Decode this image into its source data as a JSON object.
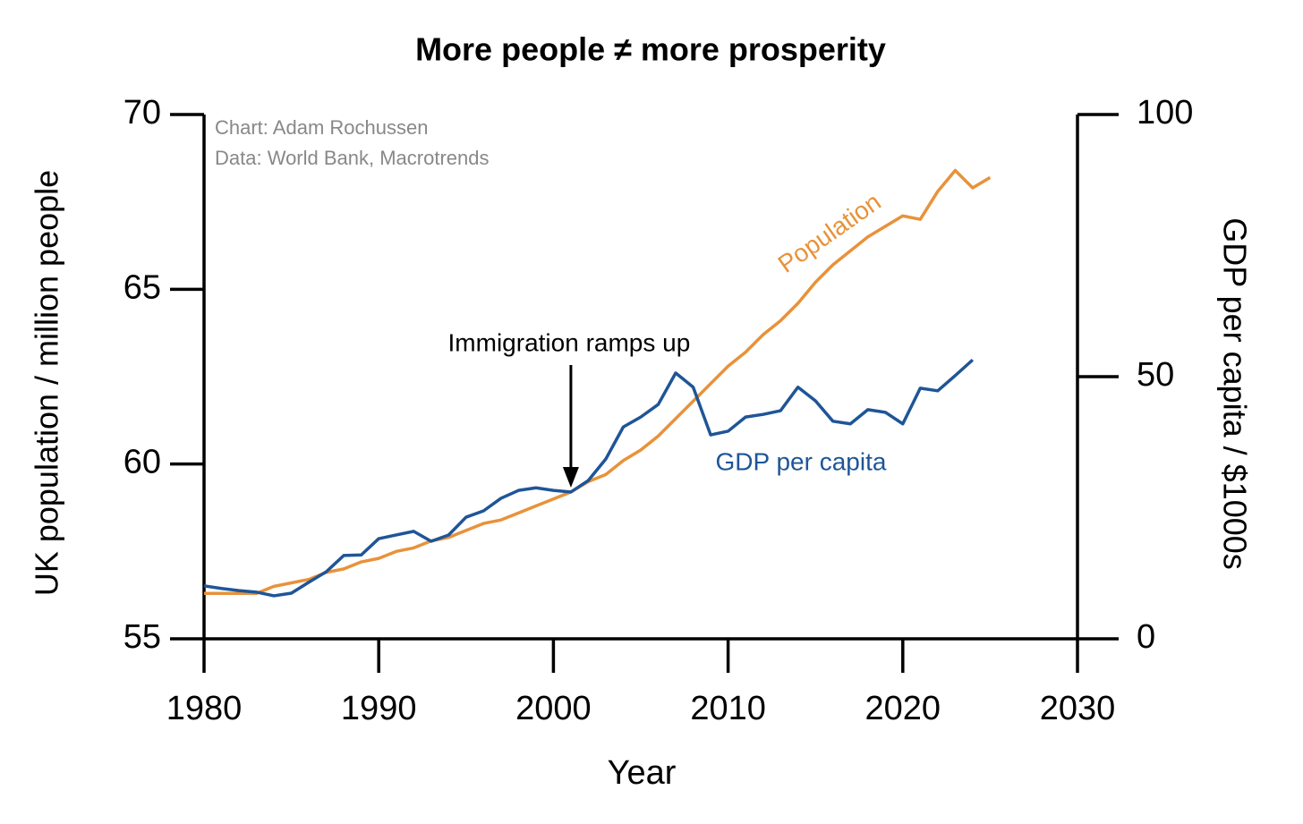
{
  "chart_data": {
    "type": "line",
    "title": "More people ≠ more prosperity",
    "x_label": "Year",
    "y_label": "UK population / million people",
    "y2_label": "GDP per capita / $1000s",
    "credits": [
      "Chart: Adam Rochussen",
      "Data: World Bank, Macrotrends"
    ],
    "annotations": [
      {
        "text": "Immigration ramps up",
        "x": 2001
      }
    ],
    "x": [
      1980,
      1981,
      1982,
      1983,
      1984,
      1985,
      1986,
      1987,
      1988,
      1989,
      1990,
      1991,
      1992,
      1993,
      1994,
      1995,
      1996,
      1997,
      1998,
      1999,
      2000,
      2001,
      2002,
      2003,
      2004,
      2005,
      2006,
      2007,
      2008,
      2009,
      2010,
      2011,
      2012,
      2013,
      2014,
      2015,
      2016,
      2017,
      2018,
      2019,
      2020,
      2021,
      2022,
      2023,
      2024,
      2025
    ],
    "series": [
      {
        "name": "Population",
        "color": "#e8923a",
        "axis": "y",
        "values": [
          56.3,
          56.3,
          56.3,
          56.3,
          56.5,
          56.6,
          56.7,
          56.9,
          57.0,
          57.2,
          57.3,
          57.5,
          57.6,
          57.8,
          57.9,
          58.1,
          58.3,
          58.4,
          58.6,
          58.8,
          59.0,
          59.2,
          59.5,
          59.7,
          60.1,
          60.4,
          60.8,
          61.3,
          61.8,
          62.3,
          62.8,
          63.2,
          63.7,
          64.1,
          64.6,
          65.2,
          65.7,
          66.1,
          66.5,
          66.8,
          67.1,
          67.0,
          67.8,
          68.4,
          67.9,
          68.2
        ]
      },
      {
        "name": "GDP per capita",
        "color": "#1f5597",
        "axis": "y2",
        "values": [
          10.1,
          9.6,
          9.2,
          8.9,
          8.2,
          8.7,
          10.8,
          12.8,
          15.9,
          16.0,
          19.1,
          19.8,
          20.5,
          18.6,
          19.8,
          23.2,
          24.4,
          26.8,
          28.3,
          28.8,
          28.3,
          28.0,
          30.2,
          34.3,
          40.4,
          42.3,
          44.7,
          50.7,
          48.0,
          38.9,
          39.6,
          42.3,
          42.8,
          43.5,
          48.0,
          45.4,
          41.5,
          41.0,
          43.7,
          43.2,
          41.0,
          47.8,
          47.3,
          50.2,
          53.2,
          null
        ]
      }
    ],
    "xlim": [
      1980,
      2030
    ],
    "xticks": [
      1980,
      1990,
      2000,
      2010,
      2020,
      2030
    ],
    "ylim": [
      55,
      70
    ],
    "yticks": [
      55,
      60,
      65,
      70
    ],
    "y2lim": [
      0,
      100
    ],
    "y2ticks": [
      0,
      50,
      100
    ]
  }
}
